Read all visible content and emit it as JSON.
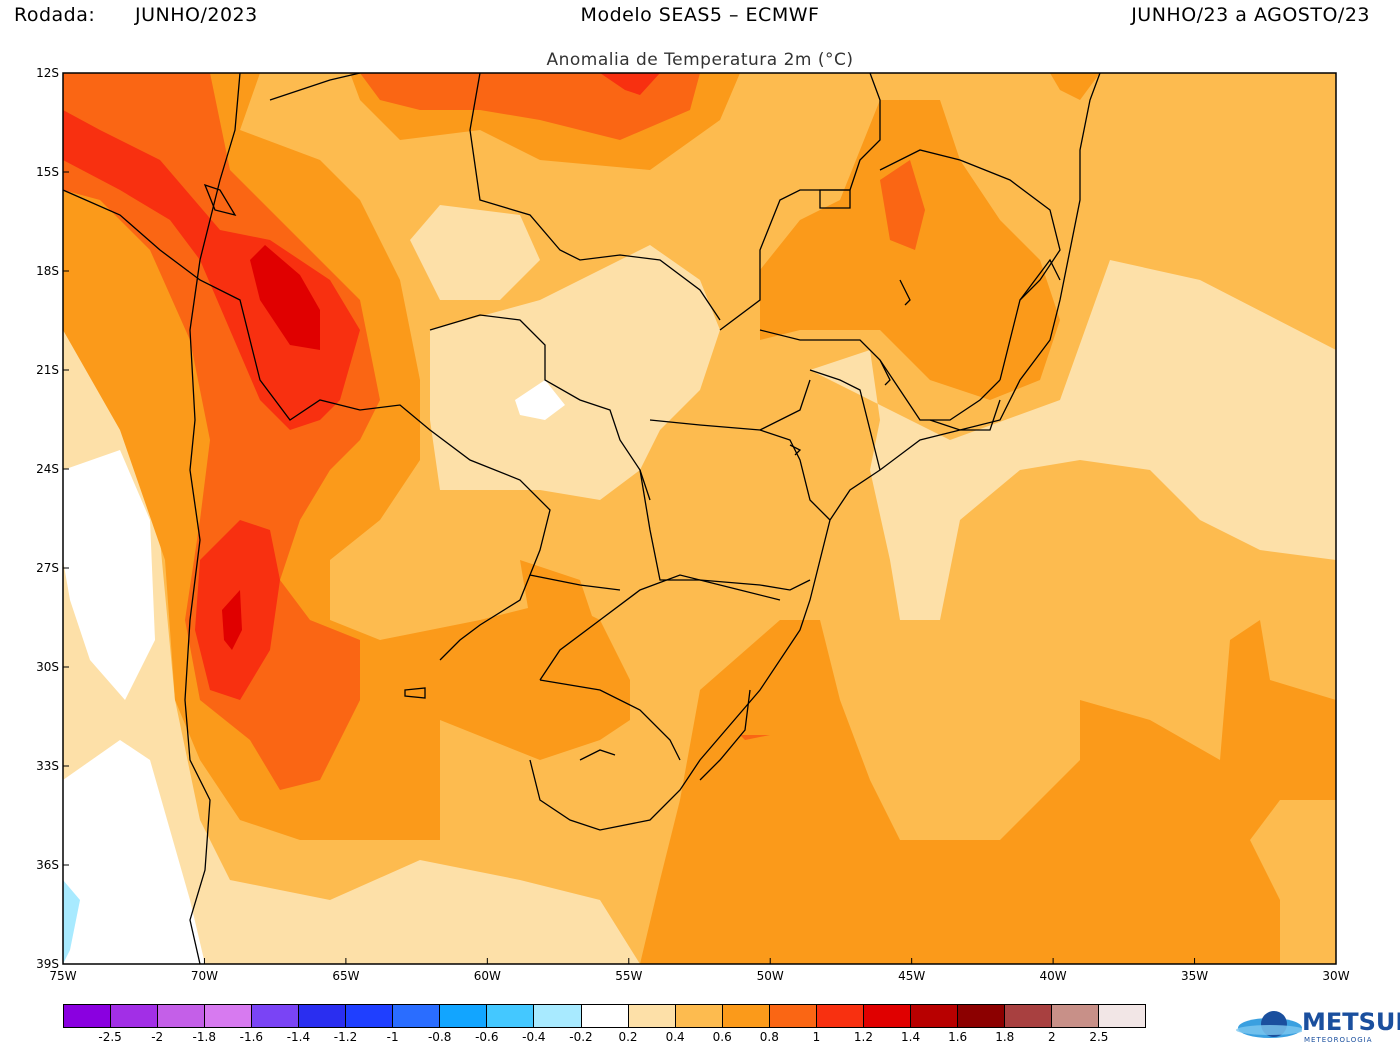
{
  "header": {
    "rodada_label": "Rodada:",
    "rodada_value": "JUNHO/2023",
    "model": "Modelo SEAS5 – ECMWF",
    "period": "JUNHO/23 a AGOSTO/23",
    "subtitle": "Anomalia de Temperatura 2m (°C)"
  },
  "axes": {
    "lon_ticks": [
      "75W",
      "70W",
      "65W",
      "60W",
      "55W",
      "50W",
      "45W",
      "40W",
      "35W",
      "30W"
    ],
    "lat_ticks": [
      "12S",
      "15S",
      "18S",
      "21S",
      "24S",
      "27S",
      "30S",
      "33S",
      "36S",
      "39S"
    ]
  },
  "colorbar": {
    "colors": [
      "#8a00e0",
      "#a22fe6",
      "#c45fe8",
      "#d77af0",
      "#7a44f5",
      "#2a2ef0",
      "#1f3fff",
      "#2a6dff",
      "#12a5ff",
      "#44c8ff",
      "#a8eaff",
      "#ffffff",
      "#fde0a8",
      "#fdbb4f",
      "#fb9a1a",
      "#fa6614",
      "#f83010",
      "#e00000",
      "#b80000",
      "#8c0000",
      "#a84040",
      "#c89088",
      "#f2e6e6"
    ],
    "labels": [
      "-2.5",
      "-2",
      "-1.8",
      "-1.6",
      "-1.4",
      "-1.2",
      "-1",
      "-0.8",
      "-0.6",
      "-0.4",
      "-0.2",
      "0.2",
      "0.4",
      "0.6",
      "0.8",
      "1",
      "1.2",
      "1.4",
      "1.6",
      "1.8",
      "2",
      "2.5"
    ]
  },
  "logo": {
    "name": "METSUL",
    "sub": "METEOROLOGIA"
  }
}
